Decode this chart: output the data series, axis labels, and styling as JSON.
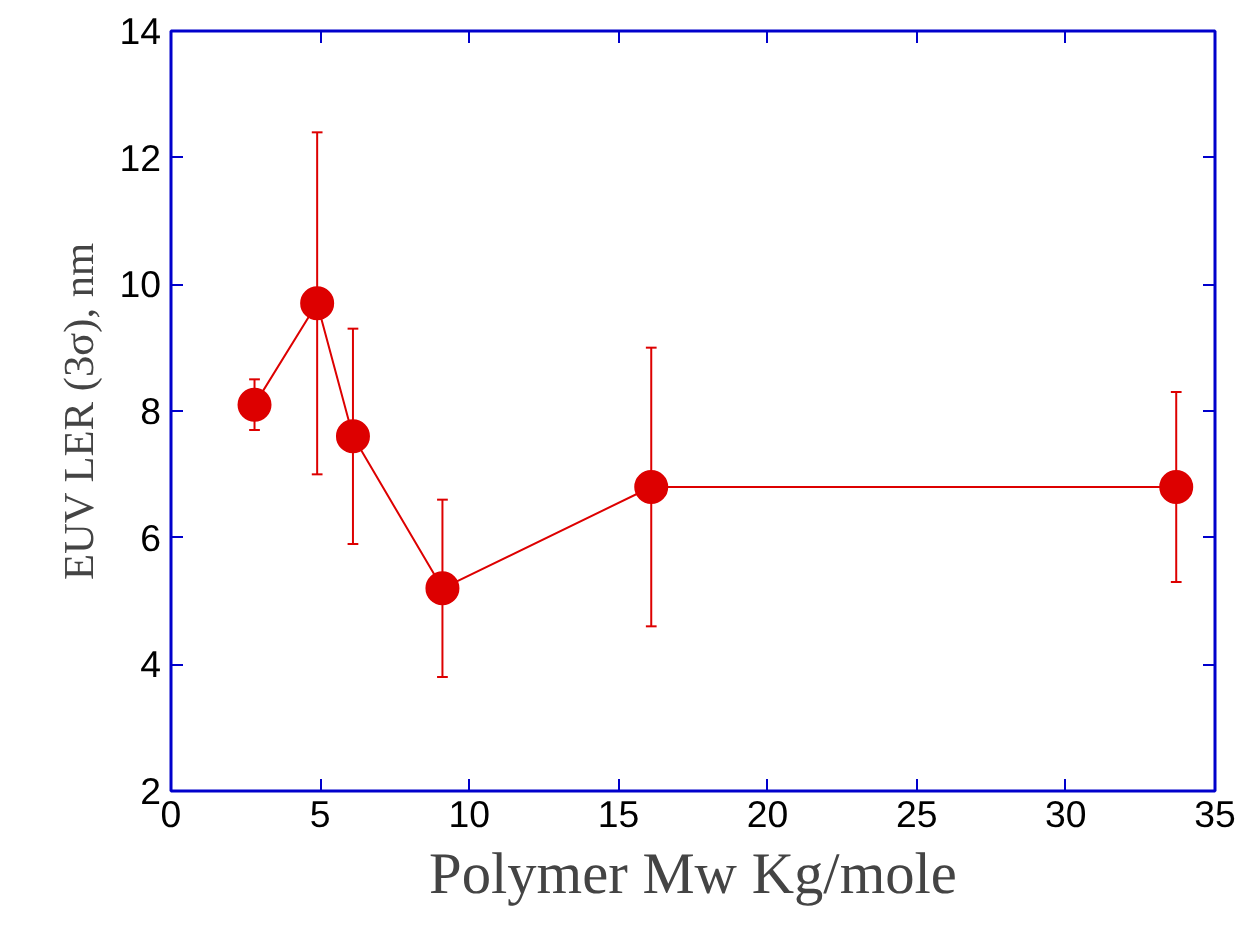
{
  "chart_data": {
    "type": "line",
    "xlabel": "Polymer Mw Kg/mole",
    "ylabel": "EUV LER (3σ), nm",
    "x": [
      2.8,
      4.9,
      6.1,
      9.1,
      16.1,
      33.7
    ],
    "series": [
      {
        "color": "#dd0000",
        "values": [
          8.1,
          9.7,
          7.6,
          5.2,
          6.8,
          6.8
        ],
        "errors": [
          [
            7.7,
            8.5
          ],
          [
            7.0,
            12.4
          ],
          [
            5.9,
            9.3
          ],
          [
            3.8,
            6.6
          ],
          [
            4.6,
            9.0
          ],
          [
            5.3,
            8.3
          ]
        ]
      }
    ],
    "marker": "circle",
    "line_style": "solid",
    "grid": false,
    "xlim": [
      0,
      35
    ],
    "ylim": [
      2,
      14
    ],
    "xticks": [
      0,
      5,
      10,
      15,
      20,
      25,
      30,
      35
    ],
    "yticks": [
      2,
      4,
      6,
      8,
      10,
      12,
      14
    ]
  }
}
